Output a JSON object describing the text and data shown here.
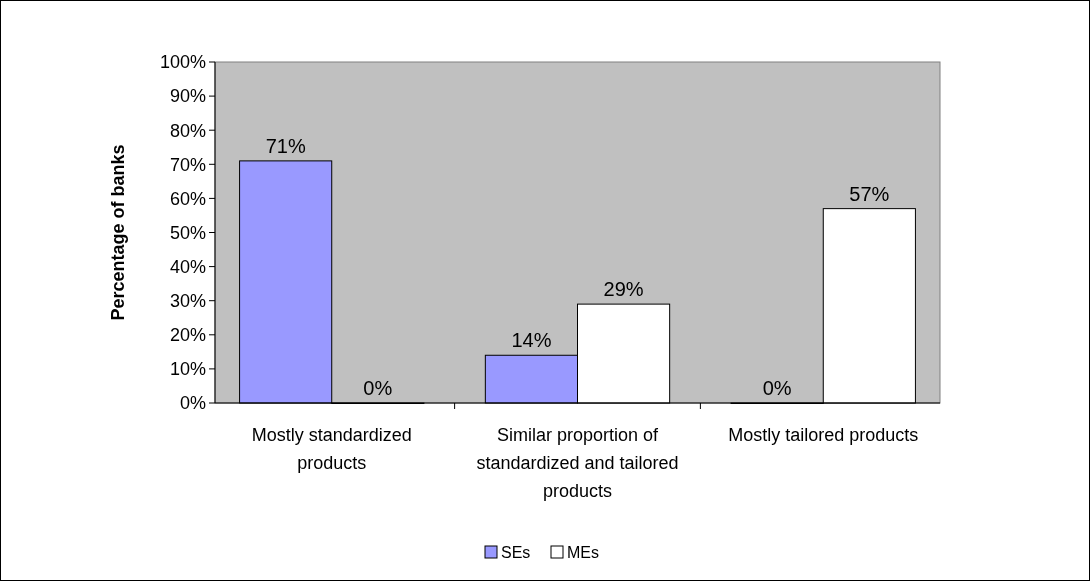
{
  "chart_data": {
    "type": "bar",
    "ylabel": "Percentage of banks",
    "categories": [
      "Mostly standardized products",
      "Similar proportion of standardized and tailored products",
      "Mostly tailored products"
    ],
    "series": [
      {
        "name": "SEs",
        "color": "#9999ff",
        "values": [
          71,
          14,
          0
        ],
        "value_labels": [
          "71%",
          "14%",
          "0%"
        ]
      },
      {
        "name": "MEs",
        "color": "#ffffff",
        "values": [
          0,
          29,
          57
        ],
        "value_labels": [
          "0%",
          "29%",
          "57%"
        ]
      }
    ],
    "ylim": [
      0,
      100
    ],
    "yticks": [
      {
        "value": 0,
        "label": "0%"
      },
      {
        "value": 10,
        "label": "10%"
      },
      {
        "value": 20,
        "label": "20%"
      },
      {
        "value": 30,
        "label": "30%"
      },
      {
        "value": 40,
        "label": "40%"
      },
      {
        "value": 50,
        "label": "50%"
      },
      {
        "value": 60,
        "label": "60%"
      },
      {
        "value": 70,
        "label": "70%"
      },
      {
        "value": 80,
        "label": "80%"
      },
      {
        "value": 90,
        "label": "90%"
      },
      {
        "value": 100,
        "label": "100%"
      }
    ],
    "grid": false,
    "legend": "bottom"
  }
}
